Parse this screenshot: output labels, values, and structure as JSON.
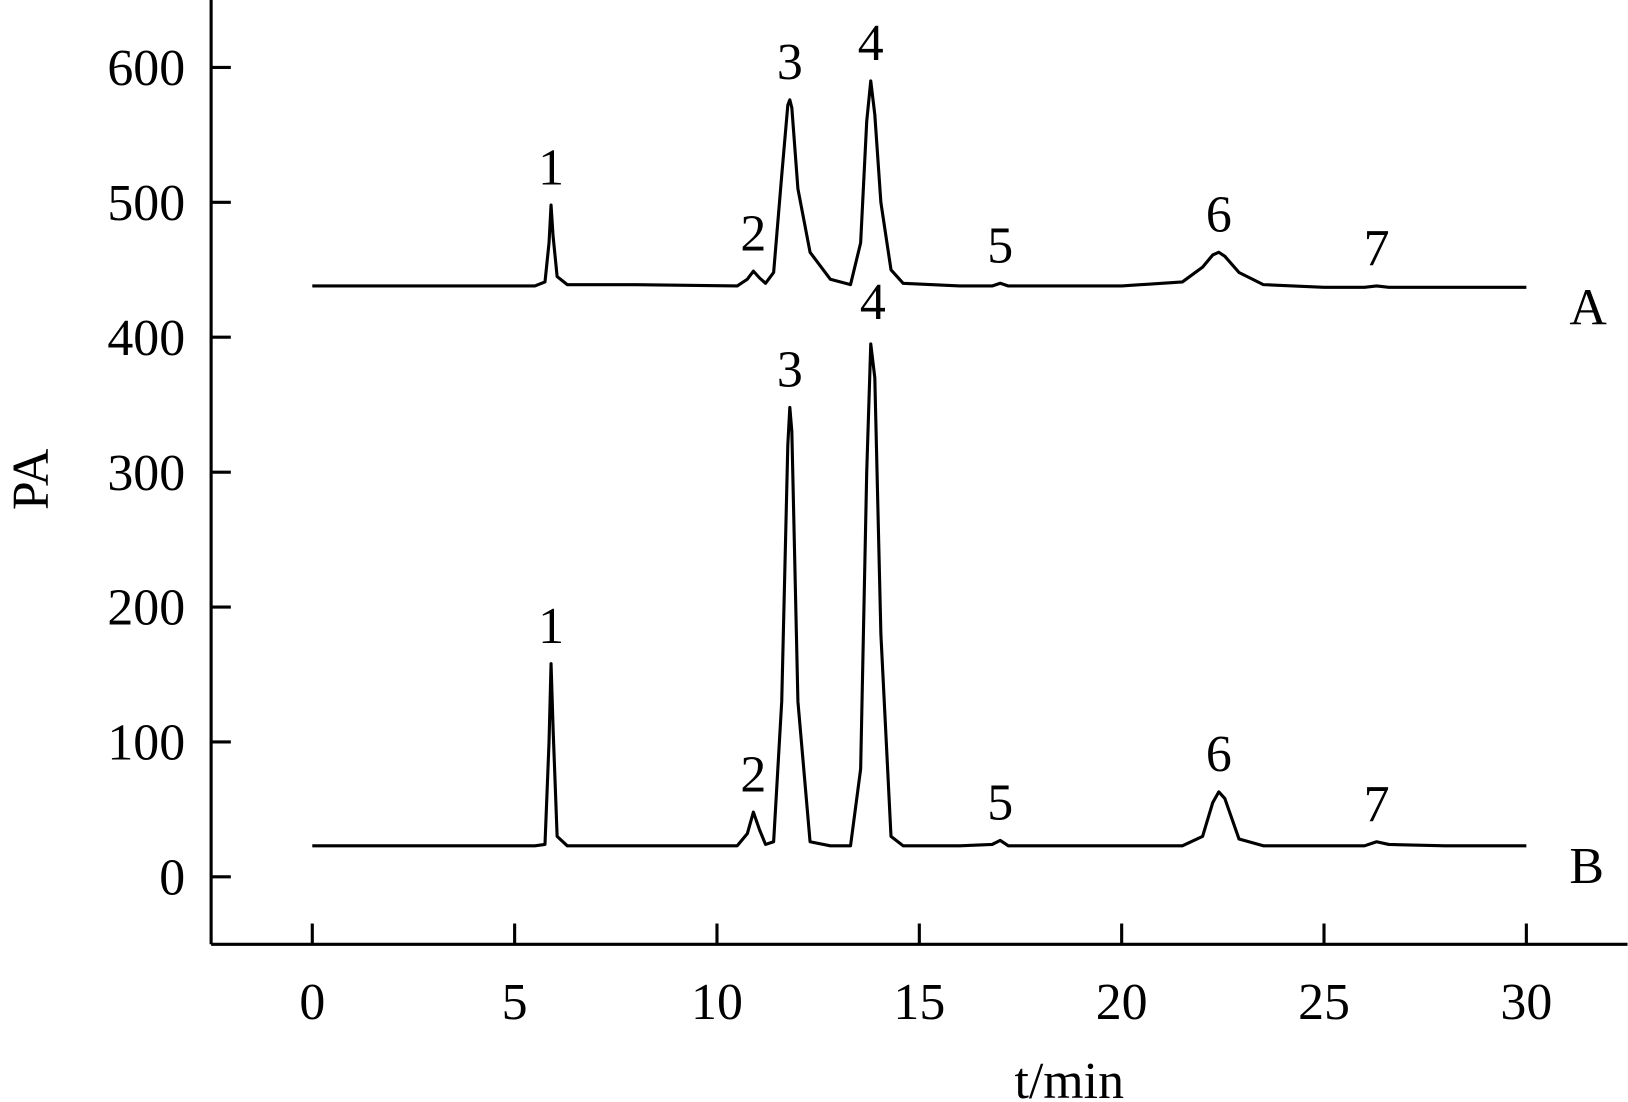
{
  "chart_data": {
    "type": "line",
    "x_label": "t/min",
    "y_label": "PA",
    "xlim": [
      -2.5,
      32.5
    ],
    "ylim": [
      -50,
      650
    ],
    "xticks": [
      0,
      5,
      10,
      15,
      20,
      25,
      30
    ],
    "yticks": [
      0,
      100,
      200,
      300,
      400,
      500,
      600
    ],
    "x": [
      0,
      2,
      4,
      5.5,
      5.75,
      5.85,
      5.9,
      5.95,
      6.05,
      6.3,
      8,
      10.5,
      10.75,
      10.9,
      11.05,
      11.2,
      11.4,
      11.6,
      11.75,
      11.8,
      11.85,
      12.0,
      12.3,
      12.8,
      13.3,
      13.55,
      13.7,
      13.8,
      13.9,
      14.05,
      14.3,
      14.6,
      16,
      16.8,
      17,
      17.2,
      20,
      21.5,
      22,
      22.25,
      22.4,
      22.55,
      22.9,
      23.5,
      25,
      26,
      26.3,
      26.6,
      28,
      30
    ],
    "series": [
      {
        "name": "A",
        "color": "#000000",
        "values": [
          438,
          438,
          438,
          438,
          441,
          470,
          498,
          475,
          445,
          439,
          439,
          438,
          443,
          449,
          444,
          440,
          448,
          520,
          572,
          576,
          570,
          510,
          463,
          443,
          439,
          470,
          560,
          590,
          565,
          500,
          450,
          440,
          438,
          438,
          440,
          438,
          438,
          441,
          452,
          461,
          463,
          460,
          448,
          439,
          437,
          437,
          438,
          437,
          437,
          437
        ],
        "peaks": [
          {
            "label": "1",
            "x": 5.9,
            "y": 498
          },
          {
            "label": "2",
            "x": 10.9,
            "y": 449
          },
          {
            "label": "3",
            "x": 11.8,
            "y": 576
          },
          {
            "label": "4",
            "x": 13.8,
            "y": 590
          },
          {
            "label": "5",
            "x": 17,
            "y": 440
          },
          {
            "label": "6",
            "x": 22.4,
            "y": 463
          },
          {
            "label": "7",
            "x": 26.3,
            "y": 438
          }
        ]
      },
      {
        "name": "B",
        "color": "#000000",
        "values": [
          23,
          23,
          23,
          23,
          24,
          100,
          158,
          110,
          30,
          23,
          23,
          23,
          32,
          48,
          35,
          24,
          26,
          130,
          320,
          348,
          330,
          130,
          26,
          23,
          23,
          80,
          300,
          395,
          370,
          180,
          30,
          23,
          23,
          24,
          27,
          23,
          23,
          23,
          30,
          55,
          63,
          58,
          28,
          23,
          23,
          23,
          26,
          24,
          23,
          23
        ],
        "peaks": [
          {
            "label": "1",
            "x": 5.9,
            "y": 158
          },
          {
            "label": "2",
            "x": 10.9,
            "y": 48
          },
          {
            "label": "3",
            "x": 11.8,
            "y": 348
          },
          {
            "label": "4",
            "x": 13.85,
            "y": 398
          },
          {
            "label": "5",
            "x": 17,
            "y": 27
          },
          {
            "label": "6",
            "x": 22.4,
            "y": 63
          },
          {
            "label": "7",
            "x": 26.3,
            "y": 26
          }
        ]
      }
    ]
  }
}
